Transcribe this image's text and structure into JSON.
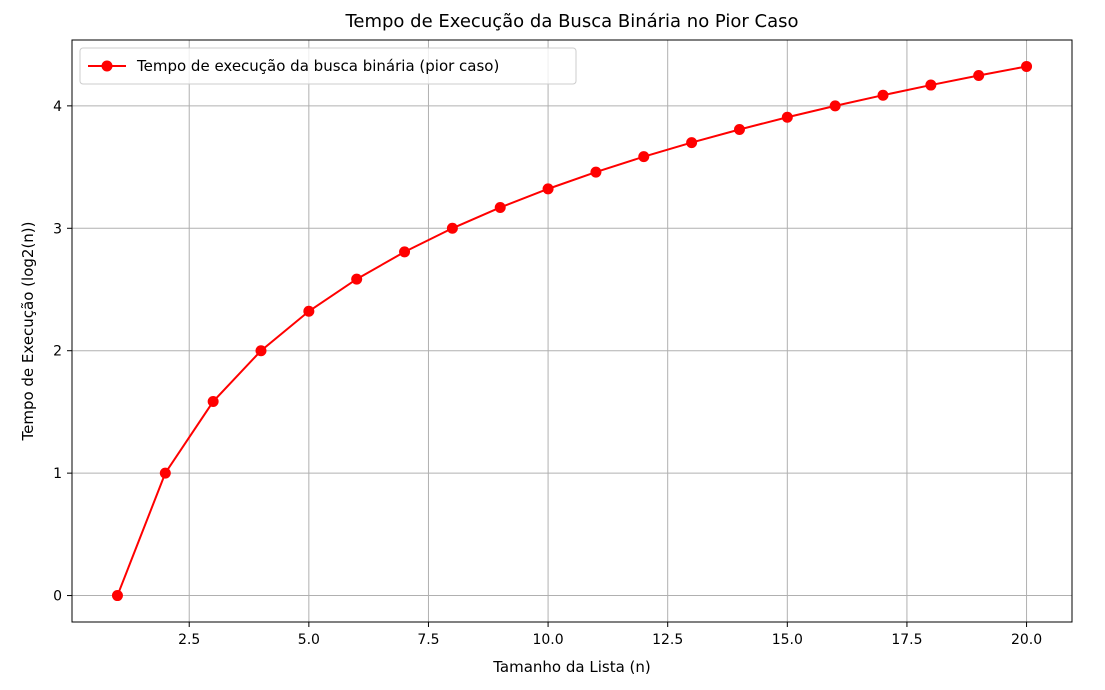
{
  "chart_data": {
    "type": "line",
    "title": "Tempo de Execução da Busca Binária no Pior Caso",
    "xlabel": "Tamanho da Lista (n)",
    "ylabel": "Tempo de Execução (log2(n))",
    "xlim": [
      0.05,
      20.95
    ],
    "ylim": [
      -0.216,
      4.538
    ],
    "xticks": [
      2.5,
      5.0,
      7.5,
      10.0,
      12.5,
      15.0,
      17.5,
      20.0
    ],
    "xtick_labels": [
      "2.5",
      "5.0",
      "7.5",
      "10.0",
      "12.5",
      "15.0",
      "17.5",
      "20.0"
    ],
    "yticks": [
      0,
      1,
      2,
      3,
      4
    ],
    "ytick_labels": [
      "0",
      "1",
      "2",
      "3",
      "4"
    ],
    "grid": true,
    "legend_position": "top-left",
    "series": [
      {
        "name": "Tempo de execução da busca binária (pior caso)",
        "color": "#ff0000",
        "marker": "circle",
        "x": [
          1,
          2,
          3,
          4,
          5,
          6,
          7,
          8,
          9,
          10,
          11,
          12,
          13,
          14,
          15,
          16,
          17,
          18,
          19,
          20
        ],
        "y": [
          0.0,
          1.0,
          1.585,
          2.0,
          2.322,
          2.585,
          2.807,
          3.0,
          3.17,
          3.322,
          3.459,
          3.585,
          3.7,
          3.807,
          3.907,
          4.0,
          4.087,
          4.17,
          4.248,
          4.322
        ]
      }
    ]
  }
}
